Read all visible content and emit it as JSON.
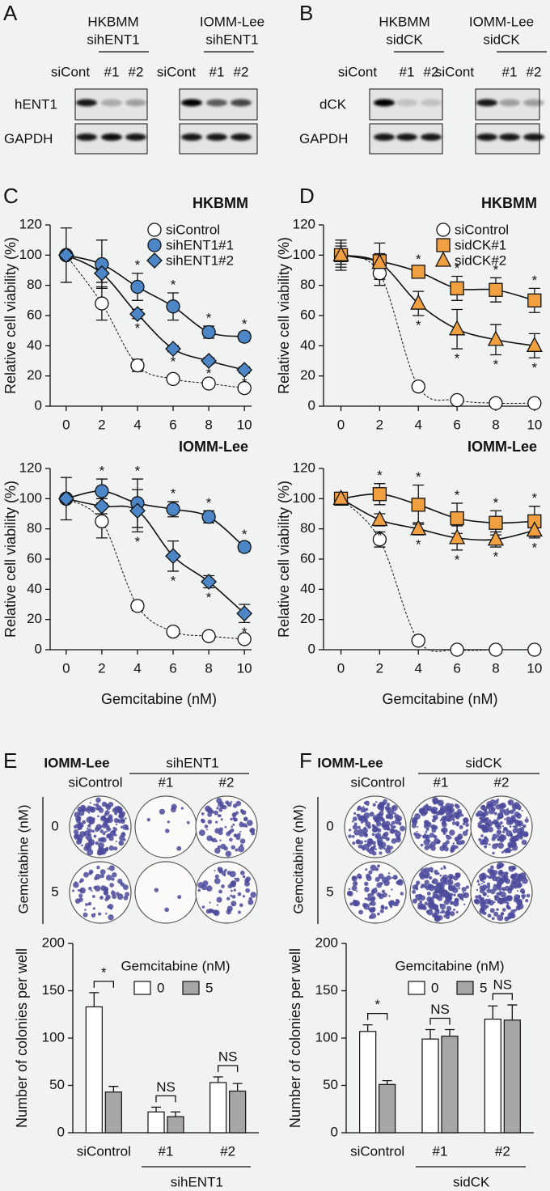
{
  "panels": [
    "A",
    "B",
    "C",
    "D",
    "E",
    "F"
  ],
  "blots": [
    {
      "rows": [
        "hENT1",
        "GAPDH"
      ],
      "groups": [
        {
          "cell": "HKBMM",
          "knockdown": "sihENT1",
          "lanes": [
            "siCont",
            "#1",
            "#2"
          ]
        },
        {
          "cell": "IOMM-Lee",
          "knockdown": "sihENT1",
          "lanes": [
            "siCont",
            "#1",
            "#2"
          ]
        }
      ]
    },
    {
      "rows": [
        "dCK",
        "GAPDH"
      ],
      "groups": [
        {
          "cell": "HKBMM",
          "knockdown": "sidCK",
          "lanes": [
            "siCont",
            "#1",
            "#2"
          ]
        },
        {
          "cell": "IOMM-Lee",
          "knockdown": "sidCK",
          "lanes": [
            "siCont",
            "#1",
            "#2"
          ]
        }
      ]
    }
  ],
  "colonies": [
    {
      "cell": "IOMM-Lee",
      "control": "siControl",
      "knockdown": "sihENT1",
      "subgroups": [
        "#1",
        "#2"
      ],
      "axis_label": "Gemcitabine (nM)",
      "doses": [
        0,
        5
      ]
    },
    {
      "cell": "IOMM-Lee",
      "control": "siControl",
      "knockdown": "sidCK",
      "subgroups": [
        "#1",
        "#2"
      ],
      "axis_label": "Gemcitabine (nM)",
      "doses": [
        0,
        5
      ]
    }
  ],
  "chart_data": [
    {
      "type": "line",
      "title": "HKBMM",
      "ylabel": "Relative cell viability (%)",
      "legend": true,
      "x": [
        0,
        2,
        4,
        6,
        8,
        10
      ],
      "xlim": [
        -0.9,
        10.4
      ],
      "xticks": [
        0,
        2,
        4,
        6,
        8,
        10
      ],
      "ylim": [
        0,
        120
      ],
      "yticks": [
        0,
        20,
        40,
        60,
        80,
        100,
        120
      ],
      "series": [
        {
          "name": "siControl",
          "color": "#ffffff",
          "marker": "circle",
          "dashed": true,
          "values": [
            100,
            68,
            27,
            18,
            15,
            12
          ],
          "errors": [
            0,
            11,
            4,
            2,
            2,
            2
          ]
        },
        {
          "name": "sihENT1#1",
          "color": "#4d86c6",
          "marker": "circle",
          "dashed": false,
          "values": [
            100,
            94,
            79,
            66,
            49,
            46
          ],
          "errors": [
            18,
            16,
            9,
            9,
            4,
            3
          ],
          "stars": [
            null,
            null,
            "*",
            "*",
            "*",
            "*"
          ],
          "star_side": "above"
        },
        {
          "name": "sihENT1#2",
          "color": "#4d86c6",
          "marker": "diamond",
          "dashed": false,
          "values": [
            100,
            88,
            61,
            38,
            30,
            24
          ],
          "errors": [
            0,
            6,
            3,
            2,
            2,
            2
          ],
          "stars": [
            null,
            null,
            "*",
            "*",
            "*",
            "*"
          ],
          "star_side": "below"
        }
      ]
    },
    {
      "type": "line",
      "title": "IOMM-Lee",
      "ylabel": "Relative cell viability (%)",
      "xlabel": "Gemcitabine (nM)",
      "legend": false,
      "x": [
        0,
        2,
        4,
        6,
        8,
        10
      ],
      "xlim": [
        -0.9,
        10.4
      ],
      "xticks": [
        0,
        2,
        4,
        6,
        8,
        10
      ],
      "ylim": [
        0,
        120
      ],
      "yticks": [
        0,
        20,
        40,
        60,
        80,
        100,
        120
      ],
      "series": [
        {
          "color": "#ffffff",
          "marker": "circle",
          "dashed": true,
          "values": [
            100,
            85,
            29,
            12,
            9,
            7
          ],
          "errors": [
            0,
            11,
            3,
            2,
            2,
            2
          ]
        },
        {
          "color": "#4d86c6",
          "marker": "circle",
          "dashed": false,
          "values": [
            100,
            105,
            97,
            93,
            88,
            68
          ],
          "errors": [
            14,
            8,
            16,
            5,
            4,
            3
          ],
          "stars": [
            null,
            "*",
            "*",
            "*",
            "*",
            "*"
          ],
          "star_side": "above"
        },
        {
          "color": "#4d86c6",
          "marker": "diamond",
          "dashed": false,
          "values": [
            100,
            95,
            92,
            62,
            45,
            24
          ],
          "errors": [
            0,
            5,
            14,
            10,
            4,
            6
          ],
          "stars": [
            null,
            null,
            "*",
            "*",
            "*",
            "*"
          ],
          "star_side": "below"
        }
      ]
    },
    {
      "type": "line",
      "title": "HKBMM",
      "ylabel": "Relative cell viability (%)",
      "legend": true,
      "x": [
        0,
        2,
        4,
        6,
        8,
        10
      ],
      "xlim": [
        -0.9,
        10.3
      ],
      "xticks": [
        0,
        2,
        4,
        6,
        8,
        10
      ],
      "ylim": [
        0,
        120
      ],
      "yticks": [
        0,
        20,
        40,
        60,
        80,
        100,
        120
      ],
      "series": [
        {
          "name": "siControl",
          "color": "#ffffff",
          "marker": "circle",
          "dashed": true,
          "values": [
            100,
            88,
            13,
            4,
            2,
            2
          ],
          "errors": [
            8,
            8,
            2,
            1,
            1,
            1
          ]
        },
        {
          "name": "sidCK#1",
          "color": "#f0a040",
          "marker": "square",
          "dashed": false,
          "values": [
            100,
            96,
            89,
            78,
            77,
            70
          ],
          "errors": [
            6,
            12,
            3,
            8,
            8,
            8
          ],
          "stars": [
            null,
            null,
            "*",
            "*",
            "*",
            "*"
          ],
          "star_side": "above"
        },
        {
          "name": "sidCK#2",
          "color": "#f0a040",
          "marker": "triangle",
          "dashed": false,
          "values": [
            100,
            95,
            68,
            51,
            44,
            40
          ],
          "errors": [
            10,
            6,
            8,
            13,
            10,
            8
          ],
          "stars": [
            null,
            null,
            "*",
            "*",
            "*",
            "*"
          ],
          "star_side": "below"
        }
      ]
    },
    {
      "type": "line",
      "title": "IOMM-Lee",
      "ylabel": "Relative cell viability (%)",
      "xlabel": "Gemcitabine (nM)",
      "legend": false,
      "x": [
        0,
        2,
        4,
        6,
        8,
        10
      ],
      "xlim": [
        -0.9,
        10.3
      ],
      "xticks": [
        0,
        2,
        4,
        6,
        8,
        10
      ],
      "ylim": [
        0,
        120
      ],
      "yticks": [
        0,
        20,
        40,
        60,
        80,
        100,
        120
      ],
      "series": [
        {
          "color": "#ffffff",
          "marker": "circle",
          "dashed": true,
          "values": [
            100,
            73,
            6,
            0,
            0,
            0
          ],
          "errors": [
            4,
            5,
            1,
            0,
            0,
            0
          ]
        },
        {
          "color": "#f0a040",
          "marker": "square",
          "dashed": false,
          "values": [
            100,
            103,
            96,
            87,
            84,
            85
          ],
          "errors": [
            3,
            7,
            13,
            10,
            8,
            10
          ],
          "stars": [
            null,
            "*",
            "*",
            "*",
            "*",
            "*"
          ],
          "star_side": "above"
        },
        {
          "color": "#f0a040",
          "marker": "triangle",
          "dashed": false,
          "values": [
            100,
            86,
            80,
            74,
            73,
            79
          ],
          "errors": [
            0,
            4,
            4,
            8,
            5,
            5
          ],
          "stars": [
            null,
            "*",
            "*",
            "*",
            "*",
            "*"
          ],
          "star_side": "below"
        }
      ]
    },
    {
      "type": "bar",
      "ylabel": "Number of colonies per well",
      "legend_title": "Gemcitabine (nM)",
      "group_label": "sihENT1",
      "categories": [
        "siControl",
        "#1",
        "#2"
      ],
      "ylim": [
        0,
        200
      ],
      "yticks": [
        0,
        50,
        100,
        150,
        200
      ],
      "series": [
        {
          "name": "0",
          "color": "#ffffff",
          "values": [
            133,
            22,
            53
          ],
          "errors": [
            15,
            5,
            6
          ]
        },
        {
          "name": "5",
          "color": "#a6a6a6",
          "values": [
            43,
            17,
            44
          ],
          "errors": [
            6,
            5,
            8
          ]
        }
      ],
      "brackets": [
        "*",
        "NS",
        "NS"
      ]
    },
    {
      "type": "bar",
      "ylabel": "Number of colonies per well",
      "legend_title": "Gemcitabine (nM)",
      "group_label": "sidCK",
      "categories": [
        "siControl",
        "#1",
        "#2"
      ],
      "ylim": [
        0,
        200
      ],
      "yticks": [
        0,
        50,
        100,
        150,
        200
      ],
      "series": [
        {
          "name": "0",
          "color": "#ffffff",
          "values": [
            107,
            99,
            120
          ],
          "errors": [
            7,
            10,
            14
          ]
        },
        {
          "name": "5",
          "color": "#a6a6a6",
          "values": [
            51,
            102,
            119
          ],
          "errors": [
            4,
            7,
            16
          ]
        }
      ],
      "brackets": [
        "*",
        "NS",
        "NS"
      ]
    }
  ]
}
